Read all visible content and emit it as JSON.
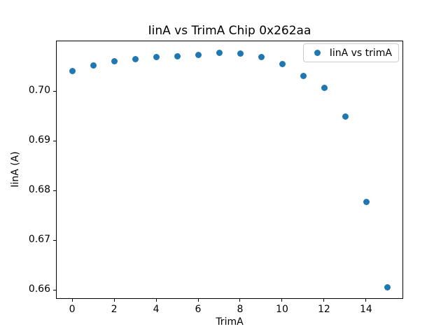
{
  "chart_data": {
    "type": "scatter",
    "title": "IinA vs TrimA Chip 0x262aa",
    "xlabel": "TrimA",
    "ylabel": "IinA (A)",
    "legend": [
      "IinA vs trimA"
    ],
    "legend_position": "upper right",
    "marker_color": "#1f77b4",
    "x": [
      0,
      1,
      2,
      3,
      4,
      5,
      6,
      7,
      8,
      9,
      10,
      11,
      12,
      13,
      14,
      15
    ],
    "y": [
      0.7041,
      0.7053,
      0.7061,
      0.7066,
      0.7069,
      0.7071,
      0.7074,
      0.7078,
      0.7076,
      0.707,
      0.7056,
      0.7032,
      0.7007,
      0.695,
      0.6778,
      0.6606
    ],
    "xlim": [
      -0.77,
      15.77
    ],
    "ylim": [
      0.6582,
      0.7102
    ],
    "x_ticks": [
      0,
      2,
      4,
      6,
      8,
      10,
      12,
      14
    ],
    "y_ticks": [
      0.66,
      0.67,
      0.68,
      0.69,
      0.7
    ],
    "grid": false
  }
}
